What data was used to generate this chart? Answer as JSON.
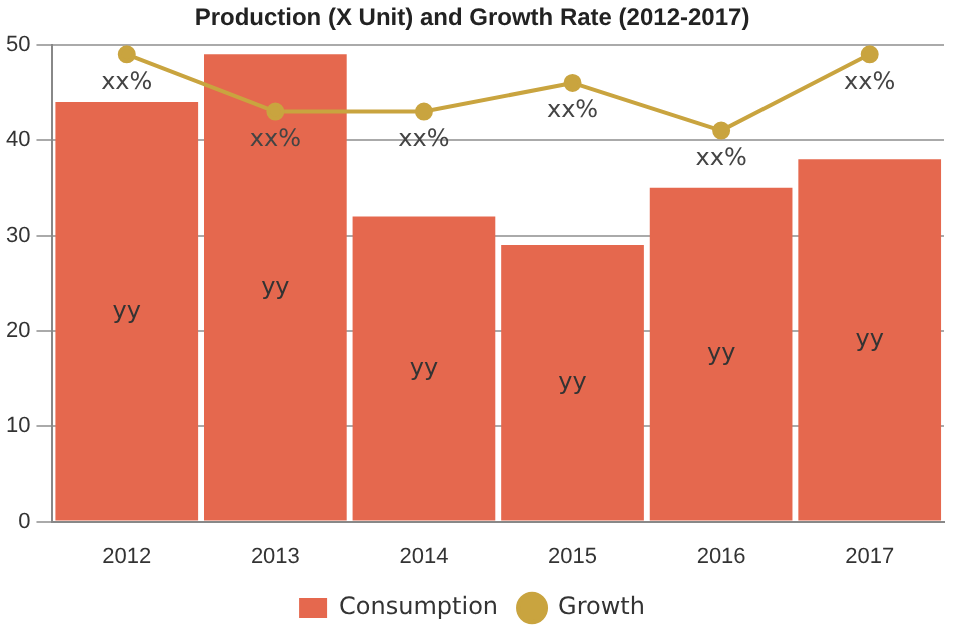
{
  "chart_data": {
    "type": "bar",
    "title": "Production (X Unit) and Growth Rate (2012-2017)",
    "categories": [
      "2012",
      "2013",
      "2014",
      "2015",
      "2016",
      "2017"
    ],
    "series": [
      {
        "name": "Consumption",
        "color": "#e5684e",
        "values": [
          44,
          49,
          32,
          29,
          35,
          38
        ],
        "value_labels": [
          "yy",
          "yy",
          "yy",
          "yy",
          "yy",
          "yy"
        ]
      },
      {
        "name": "Growth",
        "type": "line",
        "color": "#c9a43f",
        "values": [
          49,
          43,
          43,
          46,
          41,
          49
        ],
        "value_labels": [
          "xx%",
          "xx%",
          "xx%",
          "xx%",
          "xx%",
          "xx%"
        ]
      }
    ],
    "ylim": [
      0,
      50
    ],
    "yticks": [
      0,
      10,
      20,
      30,
      40,
      50
    ],
    "grid": "y",
    "legend": "bottom",
    "marker": "circle",
    "line_style": "solid"
  }
}
